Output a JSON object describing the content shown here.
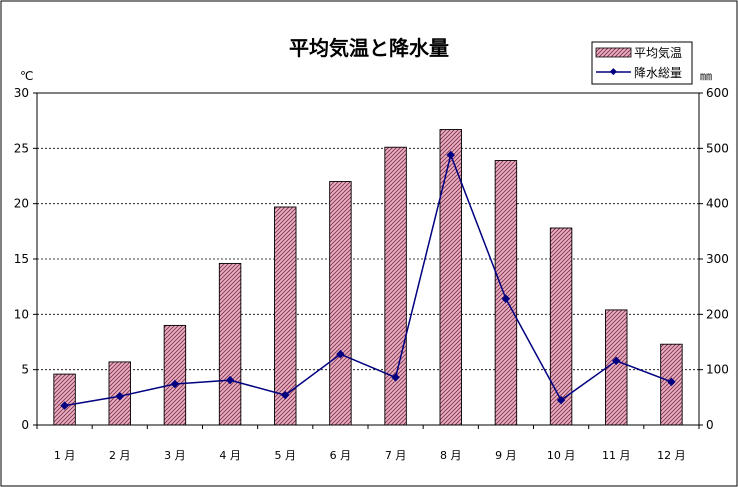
{
  "chart_data": {
    "type": "bar+line",
    "title": "平均気温と降水量",
    "categories": [
      "1 月",
      "2 月",
      "3 月",
      "4 月",
      "5 月",
      "6 月",
      "7 月",
      "8 月",
      "9 月",
      "10 月",
      "11 月",
      "12 月"
    ],
    "series": [
      {
        "name": "平均気温",
        "kind": "bar",
        "axis": "left",
        "values": [
          4.6,
          5.7,
          9.0,
          14.6,
          19.7,
          22.0,
          25.1,
          26.7,
          23.9,
          17.8,
          10.4,
          7.3
        ],
        "color": "#c06080"
      },
      {
        "name": "降水総量",
        "kind": "line",
        "axis": "right",
        "values": [
          35,
          52,
          74,
          81,
          54,
          128,
          86,
          488,
          228,
          45,
          116,
          78
        ],
        "color": "#000080"
      }
    ],
    "y_left": {
      "unit": "℃",
      "min": 0,
      "max": 30,
      "ticks": [
        0,
        5,
        10,
        15,
        20,
        25,
        30
      ]
    },
    "y_right": {
      "unit": "㎜",
      "min": 0,
      "max": 600,
      "ticks": [
        0,
        100,
        200,
        300,
        400,
        500,
        600
      ]
    },
    "grid": "horizontal-dashed",
    "legend_position": "top-right"
  }
}
